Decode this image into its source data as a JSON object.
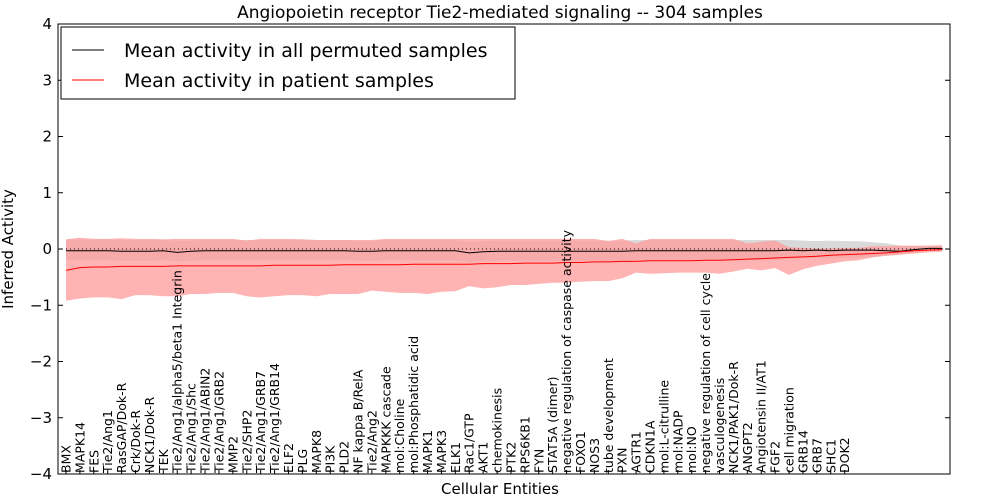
{
  "chart_data": {
    "type": "line",
    "title": "Angiopoietin receptor Tie2-mediated signaling -- 304 samples",
    "xlabel": "Cellular Entities",
    "ylabel": "Inferred Activity",
    "ylim": [
      -4,
      4
    ],
    "yticks": [
      4,
      3,
      2,
      1,
      0,
      -1,
      -2,
      -3,
      -4
    ],
    "ytick_labels": [
      "4",
      "3",
      "2",
      "1",
      "0",
      "−1",
      "−2",
      "−3",
      "−4"
    ],
    "legend": {
      "placement": "top-left",
      "entries": [
        "Mean activity in all permuted samples",
        "Mean activity in patient samples"
      ]
    },
    "series_colors": {
      "permuted": "#000000",
      "patient": "#ff0000",
      "band": "#ff9999"
    },
    "x_point_count": 64,
    "visible_tick_labels": [
      {
        "i": 0,
        "label": "BMX"
      },
      {
        "i": 1,
        "label": "MAPK14"
      },
      {
        "i": 2,
        "label": "FES"
      },
      {
        "i": 3,
        "label": "Tie2/Ang1"
      },
      {
        "i": 4,
        "label": "RasGAP/Dok-R"
      },
      {
        "i": 5,
        "label": "Crk/Dok-R"
      },
      {
        "i": 6,
        "label": "NCK1/Dok-R"
      },
      {
        "i": 7,
        "label": "TEK"
      },
      {
        "i": 8,
        "label": "Tie2/Ang1/alpha5/beta1 Integrin"
      },
      {
        "i": 9,
        "label": "Tie2/Ang1/Shc"
      },
      {
        "i": 10,
        "label": "Tie2/Ang1/ABIN2"
      },
      {
        "i": 11,
        "label": "Tie2/Ang1/GRB2"
      },
      {
        "i": 12,
        "label": "MMP2"
      },
      {
        "i": 13,
        "label": "Tie2/SHP2"
      },
      {
        "i": 14,
        "label": "Tie2/Ang1/GRB7"
      },
      {
        "i": 15,
        "label": "Tie2/Ang1/GRB14"
      },
      {
        "i": 16,
        "label": "ELF2"
      },
      {
        "i": 17,
        "label": "PLG"
      },
      {
        "i": 18,
        "label": "MAPK8"
      },
      {
        "i": 19,
        "label": "PI3K"
      },
      {
        "i": 20,
        "label": "PLD2"
      },
      {
        "i": 21,
        "label": "NF kappa B/RelA"
      },
      {
        "i": 22,
        "label": "Tie2/Ang2"
      },
      {
        "i": 23,
        "label": "MAPKKK cascade"
      },
      {
        "i": 24,
        "label": "mol:Choline"
      },
      {
        "i": 25,
        "label": "mol:Phosphatidic acid"
      },
      {
        "i": 26,
        "label": "MAPK1"
      },
      {
        "i": 27,
        "label": "MAPK3"
      },
      {
        "i": 28,
        "label": "ELK1"
      },
      {
        "i": 29,
        "label": "Rac1/GTP"
      },
      {
        "i": 30,
        "label": "AKT1"
      },
      {
        "i": 31,
        "label": "chemokinesis"
      },
      {
        "i": 32,
        "label": "PTK2"
      },
      {
        "i": 33,
        "label": "RPS6KB1"
      },
      {
        "i": 34,
        "label": "FYN"
      },
      {
        "i": 35,
        "label": "STAT5A (dimer)"
      },
      {
        "i": 36,
        "label": "negative regulation of caspase activity"
      },
      {
        "i": 37,
        "label": "FOXO1"
      },
      {
        "i": 38,
        "label": "NOS3"
      },
      {
        "i": 39,
        "label": "tube development"
      },
      {
        "i": 40,
        "label": "PXN"
      },
      {
        "i": 41,
        "label": "AGTR1"
      },
      {
        "i": 42,
        "label": "CDKN1A"
      },
      {
        "i": 43,
        "label": "mol:L-citrulline"
      },
      {
        "i": 44,
        "label": "mol:NADP"
      },
      {
        "i": 45,
        "label": "mol:NO"
      },
      {
        "i": 46,
        "label": "negative regulation of cell cycle"
      },
      {
        "i": 47,
        "label": "vasculogenesis"
      },
      {
        "i": 48,
        "label": "NCK1/PAK1/Dok-R"
      },
      {
        "i": 49,
        "label": "ANGPT2"
      },
      {
        "i": 50,
        "label": "Angiotensin II/AT1"
      },
      {
        "i": 51,
        "label": "FGF2"
      },
      {
        "i": 52,
        "label": "cell migration"
      },
      {
        "i": 53,
        "label": "GRB14"
      },
      {
        "i": 54,
        "label": "GRB7"
      },
      {
        "i": 55,
        "label": "SHC1"
      },
      {
        "i": 56,
        "label": "DOK2"
      }
    ],
    "permuted_mean": [
      -0.03,
      -0.03,
      -0.03,
      -0.03,
      -0.04,
      -0.04,
      -0.04,
      -0.03,
      -0.06,
      -0.04,
      -0.03,
      -0.03,
      -0.03,
      -0.03,
      -0.03,
      -0.03,
      -0.03,
      -0.03,
      -0.03,
      -0.03,
      -0.03,
      -0.04,
      -0.04,
      -0.03,
      -0.03,
      -0.03,
      -0.03,
      -0.03,
      -0.03,
      -0.07,
      -0.05,
      -0.04,
      -0.04,
      -0.04,
      -0.04,
      -0.04,
      -0.04,
      -0.04,
      -0.04,
      -0.04,
      -0.04,
      -0.03,
      -0.03,
      -0.03,
      -0.03,
      -0.03,
      -0.03,
      -0.03,
      -0.03,
      -0.03,
      -0.03,
      -0.03,
      -0.02,
      -0.03,
      -0.02,
      -0.03,
      -0.02,
      -0.02,
      -0.02,
      -0.03,
      -0.04,
      -0.01,
      0.01,
      0.01
    ],
    "permuted_upper": [
      0.17,
      0.17,
      0.17,
      0.17,
      0.16,
      0.16,
      0.16,
      0.17,
      0.14,
      0.15,
      0.16,
      0.16,
      0.16,
      0.16,
      0.16,
      0.16,
      0.16,
      0.17,
      0.16,
      0.16,
      0.16,
      0.15,
      0.15,
      0.16,
      0.16,
      0.16,
      0.16,
      0.16,
      0.16,
      0.12,
      0.14,
      0.15,
      0.15,
      0.15,
      0.15,
      0.15,
      0.15,
      0.15,
      0.15,
      0.15,
      0.15,
      0.16,
      0.16,
      0.16,
      0.16,
      0.16,
      0.16,
      0.16,
      0.16,
      0.16,
      0.16,
      0.16,
      0.16,
      0.15,
      0.14,
      0.15,
      0.14,
      0.14,
      0.12,
      0.1,
      0.06,
      0.05,
      0.05,
      0.05
    ],
    "permuted_lower": [
      -0.2,
      -0.2,
      -0.2,
      -0.2,
      -0.21,
      -0.21,
      -0.21,
      -0.2,
      -0.22,
      -0.21,
      -0.2,
      -0.2,
      -0.2,
      -0.2,
      -0.2,
      -0.2,
      -0.2,
      -0.2,
      -0.2,
      -0.2,
      -0.2,
      -0.21,
      -0.21,
      -0.2,
      -0.2,
      -0.2,
      -0.2,
      -0.2,
      -0.2,
      -0.23,
      -0.22,
      -0.21,
      -0.21,
      -0.21,
      -0.21,
      -0.21,
      -0.21,
      -0.21,
      -0.21,
      -0.21,
      -0.21,
      -0.2,
      -0.2,
      -0.2,
      -0.2,
      -0.2,
      -0.2,
      -0.2,
      -0.2,
      -0.2,
      -0.2,
      -0.2,
      -0.18,
      -0.17,
      -0.16,
      -0.17,
      -0.16,
      -0.15,
      -0.14,
      -0.12,
      -0.1,
      -0.06,
      -0.04,
      -0.03
    ],
    "patient_mean": [
      -0.38,
      -0.33,
      -0.32,
      -0.32,
      -0.31,
      -0.31,
      -0.31,
      -0.31,
      -0.3,
      -0.3,
      -0.3,
      -0.3,
      -0.3,
      -0.3,
      -0.3,
      -0.29,
      -0.29,
      -0.29,
      -0.29,
      -0.29,
      -0.28,
      -0.28,
      -0.28,
      -0.28,
      -0.28,
      -0.27,
      -0.27,
      -0.27,
      -0.27,
      -0.27,
      -0.26,
      -0.26,
      -0.26,
      -0.25,
      -0.25,
      -0.25,
      -0.24,
      -0.24,
      -0.23,
      -0.23,
      -0.22,
      -0.22,
      -0.21,
      -0.21,
      -0.21,
      -0.21,
      -0.2,
      -0.2,
      -0.19,
      -0.18,
      -0.17,
      -0.16,
      -0.15,
      -0.14,
      -0.13,
      -0.11,
      -0.1,
      -0.09,
      -0.08,
      -0.07,
      -0.05,
      -0.03,
      -0.02,
      -0.01
    ],
    "patient_upper": [
      0.17,
      0.2,
      0.18,
      0.18,
      0.19,
      0.18,
      0.18,
      0.17,
      0.18,
      0.18,
      0.18,
      0.18,
      0.18,
      0.15,
      0.18,
      0.18,
      0.18,
      0.17,
      0.16,
      0.16,
      0.16,
      0.16,
      0.16,
      0.18,
      0.18,
      0.18,
      0.18,
      0.18,
      0.18,
      0.18,
      0.18,
      0.18,
      0.18,
      0.18,
      0.18,
      0.18,
      0.18,
      0.18,
      0.18,
      0.14,
      0.18,
      0.1,
      0.18,
      0.18,
      0.18,
      0.18,
      0.18,
      0.18,
      0.18,
      0.1,
      0.13,
      0.15,
      0.03,
      0.02,
      0.01,
      0.01,
      0.02,
      0.02,
      0.05,
      0.05,
      0.06,
      0.06,
      0.06,
      0.07
    ],
    "patient_lower": [
      -0.92,
      -0.88,
      -0.86,
      -0.86,
      -0.89,
      -0.82,
      -0.82,
      -0.84,
      -0.84,
      -0.8,
      -0.8,
      -0.78,
      -0.78,
      -0.84,
      -0.86,
      -0.84,
      -0.82,
      -0.82,
      -0.84,
      -0.8,
      -0.8,
      -0.8,
      -0.74,
      -0.76,
      -0.78,
      -0.78,
      -0.8,
      -0.76,
      -0.75,
      -0.66,
      -0.7,
      -0.68,
      -0.64,
      -0.64,
      -0.62,
      -0.6,
      -0.6,
      -0.58,
      -0.57,
      -0.57,
      -0.52,
      -0.42,
      -0.44,
      -0.43,
      -0.42,
      -0.42,
      -0.42,
      -0.44,
      -0.4,
      -0.35,
      -0.38,
      -0.34,
      -0.46,
      -0.36,
      -0.3,
      -0.26,
      -0.22,
      -0.2,
      -0.15,
      -0.12,
      -0.1,
      -0.08,
      -0.06,
      -0.05
    ]
  }
}
